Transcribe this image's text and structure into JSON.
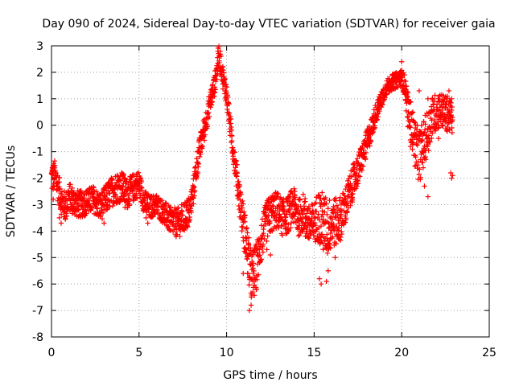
{
  "chart_data": {
    "type": "scatter",
    "title": "Day 090 of 2024, Sidereal Day-to-day VTEC variation (SDTVAR) for receiver gaia",
    "xlabel": "GPS time / hours",
    "ylabel": "SDTVAR / TECUs",
    "xlim": [
      0,
      25
    ],
    "ylim": [
      -8,
      3
    ],
    "xticks": [
      0,
      5,
      10,
      15,
      20,
      25
    ],
    "yticks": [
      -8,
      -7,
      -6,
      -5,
      -4,
      -3,
      -2,
      -1,
      0,
      1,
      2,
      3
    ],
    "grid": true,
    "marker": "+",
    "color": "#ff0000",
    "series": [
      {
        "name": "SDTVAR",
        "trace": [
          [
            0.0,
            -2.0
          ],
          [
            0.2,
            -1.9
          ],
          [
            0.4,
            -2.4
          ],
          [
            0.6,
            -2.9
          ],
          [
            0.8,
            -3.1
          ],
          [
            1.0,
            -2.7
          ],
          [
            1.3,
            -2.9
          ],
          [
            1.6,
            -3.0
          ],
          [
            2.0,
            -2.9
          ],
          [
            2.4,
            -2.8
          ],
          [
            2.8,
            -3.1
          ],
          [
            3.2,
            -2.7
          ],
          [
            3.6,
            -2.4
          ],
          [
            4.0,
            -2.3
          ],
          [
            4.3,
            -2.6
          ],
          [
            4.6,
            -2.4
          ],
          [
            5.0,
            -2.2
          ],
          [
            5.3,
            -2.9
          ],
          [
            5.6,
            -3.1
          ],
          [
            6.0,
            -3.0
          ],
          [
            6.4,
            -3.3
          ],
          [
            6.8,
            -3.6
          ],
          [
            7.2,
            -3.7
          ],
          [
            7.6,
            -3.5
          ],
          [
            7.9,
            -3.2
          ],
          [
            8.1,
            -2.5
          ],
          [
            8.3,
            -1.5
          ],
          [
            8.5,
            -0.8
          ],
          [
            8.7,
            -0.2
          ],
          [
            8.9,
            0.4
          ],
          [
            9.1,
            1.0
          ],
          [
            9.3,
            1.5
          ],
          [
            9.45,
            2.1
          ],
          [
            9.55,
            2.7
          ],
          [
            9.7,
            2.2
          ],
          [
            9.85,
            1.6
          ],
          [
            10.0,
            1.2
          ],
          [
            10.1,
            0.6
          ],
          [
            10.2,
            0.0
          ],
          [
            10.35,
            -0.8
          ],
          [
            10.5,
            -1.5
          ],
          [
            10.65,
            -2.3
          ],
          [
            10.8,
            -3.0
          ],
          [
            10.95,
            -3.7
          ],
          [
            11.1,
            -4.3
          ],
          [
            11.25,
            -5.0
          ],
          [
            11.4,
            -5.7
          ],
          [
            11.6,
            -5.6
          ],
          [
            11.8,
            -5.0
          ],
          [
            12.0,
            -4.3
          ],
          [
            12.3,
            -3.6
          ],
          [
            12.6,
            -3.3
          ],
          [
            12.9,
            -3.2
          ],
          [
            13.2,
            -3.5
          ],
          [
            13.5,
            -3.4
          ],
          [
            13.8,
            -3.0
          ],
          [
            14.1,
            -3.5
          ],
          [
            14.4,
            -3.3
          ],
          [
            14.7,
            -3.8
          ],
          [
            15.0,
            -3.7
          ],
          [
            15.2,
            -3.4
          ],
          [
            15.5,
            -3.7
          ],
          [
            15.8,
            -3.9
          ],
          [
            16.0,
            -3.6
          ],
          [
            16.3,
            -3.7
          ],
          [
            16.6,
            -3.4
          ],
          [
            16.8,
            -3.0
          ],
          [
            17.0,
            -2.6
          ],
          [
            17.3,
            -2.0
          ],
          [
            17.6,
            -1.5
          ],
          [
            17.9,
            -0.9
          ],
          [
            18.2,
            -0.3
          ],
          [
            18.5,
            0.4
          ],
          [
            18.8,
            0.9
          ],
          [
            19.1,
            1.4
          ],
          [
            19.4,
            1.6
          ],
          [
            19.7,
            1.7
          ],
          [
            20.0,
            1.8
          ],
          [
            20.2,
            1.4
          ],
          [
            20.35,
            0.6
          ],
          [
            20.5,
            0.2
          ],
          [
            20.65,
            -0.3
          ],
          [
            20.8,
            -0.8
          ],
          [
            21.0,
            -1.2
          ],
          [
            21.2,
            -0.8
          ],
          [
            21.4,
            -0.4
          ],
          [
            21.6,
            0.0
          ],
          [
            21.8,
            0.4
          ],
          [
            22.0,
            0.5
          ],
          [
            22.2,
            0.6
          ],
          [
            22.4,
            0.5
          ],
          [
            22.6,
            0.4
          ],
          [
            22.8,
            0.3
          ],
          [
            22.9,
            0.2
          ]
        ],
        "spread": [
          [
            0.0,
            0.6
          ],
          [
            2.0,
            0.5
          ],
          [
            4.0,
            0.6
          ],
          [
            6.0,
            0.4
          ],
          [
            7.5,
            0.6
          ],
          [
            8.5,
            0.5
          ],
          [
            9.5,
            0.4
          ],
          [
            10.5,
            0.5
          ],
          [
            11.0,
            0.8
          ],
          [
            11.5,
            1.0
          ],
          [
            12.0,
            0.8
          ],
          [
            13.0,
            0.7
          ],
          [
            14.0,
            0.7
          ],
          [
            15.0,
            0.8
          ],
          [
            15.5,
            1.2
          ],
          [
            16.0,
            1.0
          ],
          [
            17.0,
            0.7
          ],
          [
            18.0,
            0.5
          ],
          [
            19.0,
            0.3
          ],
          [
            20.0,
            0.3
          ],
          [
            20.5,
            0.8
          ],
          [
            21.0,
            1.0
          ],
          [
            22.0,
            0.7
          ],
          [
            23.0,
            0.6
          ]
        ],
        "extra_points": [
          [
            0.05,
            -1.6
          ],
          [
            0.1,
            -2.8
          ],
          [
            0.45,
            -3.5
          ],
          [
            0.55,
            -3.7
          ],
          [
            1.2,
            -3.2
          ],
          [
            3.0,
            -3.7
          ],
          [
            4.1,
            -1.9
          ],
          [
            4.2,
            -3.1
          ],
          [
            5.4,
            -3.5
          ],
          [
            5.5,
            -3.7
          ],
          [
            7.3,
            -3.9
          ],
          [
            9.5,
            2.8
          ],
          [
            9.6,
            2.6
          ],
          [
            11.3,
            -7.0
          ],
          [
            11.4,
            -6.8
          ],
          [
            11.5,
            -6.3
          ],
          [
            11.7,
            -6.2
          ],
          [
            11.2,
            -5.6
          ],
          [
            10.95,
            -5.6
          ],
          [
            12.3,
            -4.7
          ],
          [
            12.5,
            -4.9
          ],
          [
            13.9,
            -2.5
          ],
          [
            14.5,
            -4.2
          ],
          [
            15.3,
            -5.8
          ],
          [
            15.4,
            -6.0
          ],
          [
            15.7,
            -5.9
          ],
          [
            15.8,
            -5.5
          ],
          [
            16.2,
            -5.0
          ],
          [
            20.0,
            2.4
          ],
          [
            20.5,
            -0.8
          ],
          [
            20.8,
            -1.2
          ],
          [
            21.3,
            -2.3
          ],
          [
            21.5,
            -2.7
          ],
          [
            21.0,
            1.3
          ],
          [
            21.5,
            1.0
          ],
          [
            22.1,
            -0.5
          ],
          [
            22.3,
            0.7
          ],
          [
            22.5,
            0.8
          ],
          [
            22.7,
            1.3
          ],
          [
            22.8,
            -1.8
          ],
          [
            22.85,
            -2.0
          ],
          [
            22.9,
            -1.9
          ],
          [
            22.85,
            1.0
          ],
          [
            22.8,
            0.5
          ],
          [
            22.75,
            0.9
          ],
          [
            22.6,
            1.1
          ]
        ]
      }
    ]
  }
}
